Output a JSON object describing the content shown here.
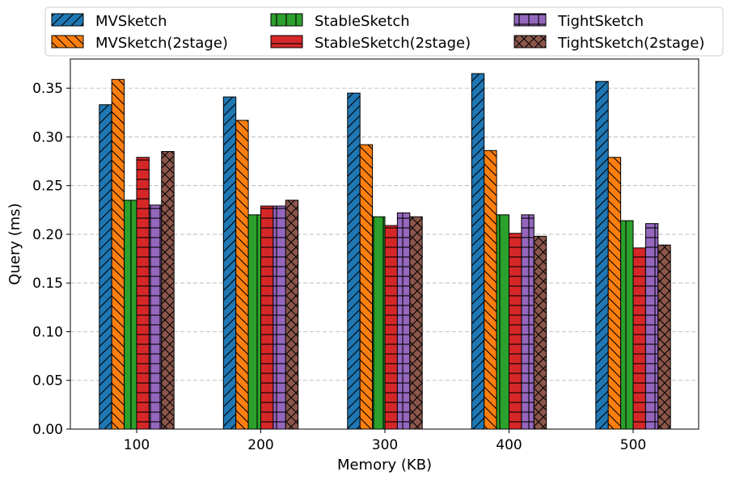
{
  "chart_data": {
    "type": "bar",
    "xlabel": "Memory (KB)",
    "ylabel": "Query (ms)",
    "categories": [
      "100",
      "200",
      "300",
      "400",
      "500"
    ],
    "ylim": [
      0,
      0.38
    ],
    "yticks": [
      "0.00",
      "0.05",
      "0.10",
      "0.15",
      "0.20",
      "0.25",
      "0.30",
      "0.35"
    ],
    "grid": "horizontal dashed",
    "legend_position": "top, outside plot",
    "series": [
      {
        "name": "MVSketch",
        "color": "#1f77b4",
        "hatch": "/",
        "values": [
          0.333,
          0.341,
          0.345,
          0.365,
          0.357
        ]
      },
      {
        "name": "MVSketch(2stage)",
        "color": "#ff7f0e",
        "hatch": "\\",
        "values": [
          0.359,
          0.317,
          0.292,
          0.286,
          0.279
        ]
      },
      {
        "name": "StableSketch",
        "color": "#2ca02c",
        "hatch": "|",
        "values": [
          0.235,
          0.22,
          0.218,
          0.22,
          0.214
        ]
      },
      {
        "name": "StableSketch(2stage)",
        "color": "#d62728",
        "hatch": "-",
        "values": [
          0.279,
          0.229,
          0.209,
          0.201,
          0.186
        ]
      },
      {
        "name": "TightSketch",
        "color": "#9467bd",
        "hatch": "+",
        "values": [
          0.23,
          0.229,
          0.222,
          0.22,
          0.211
        ]
      },
      {
        "name": "TightSketch(2stage)",
        "color": "#8c564b",
        "hatch": "x",
        "values": [
          0.285,
          0.235,
          0.218,
          0.198,
          0.189
        ]
      }
    ]
  }
}
